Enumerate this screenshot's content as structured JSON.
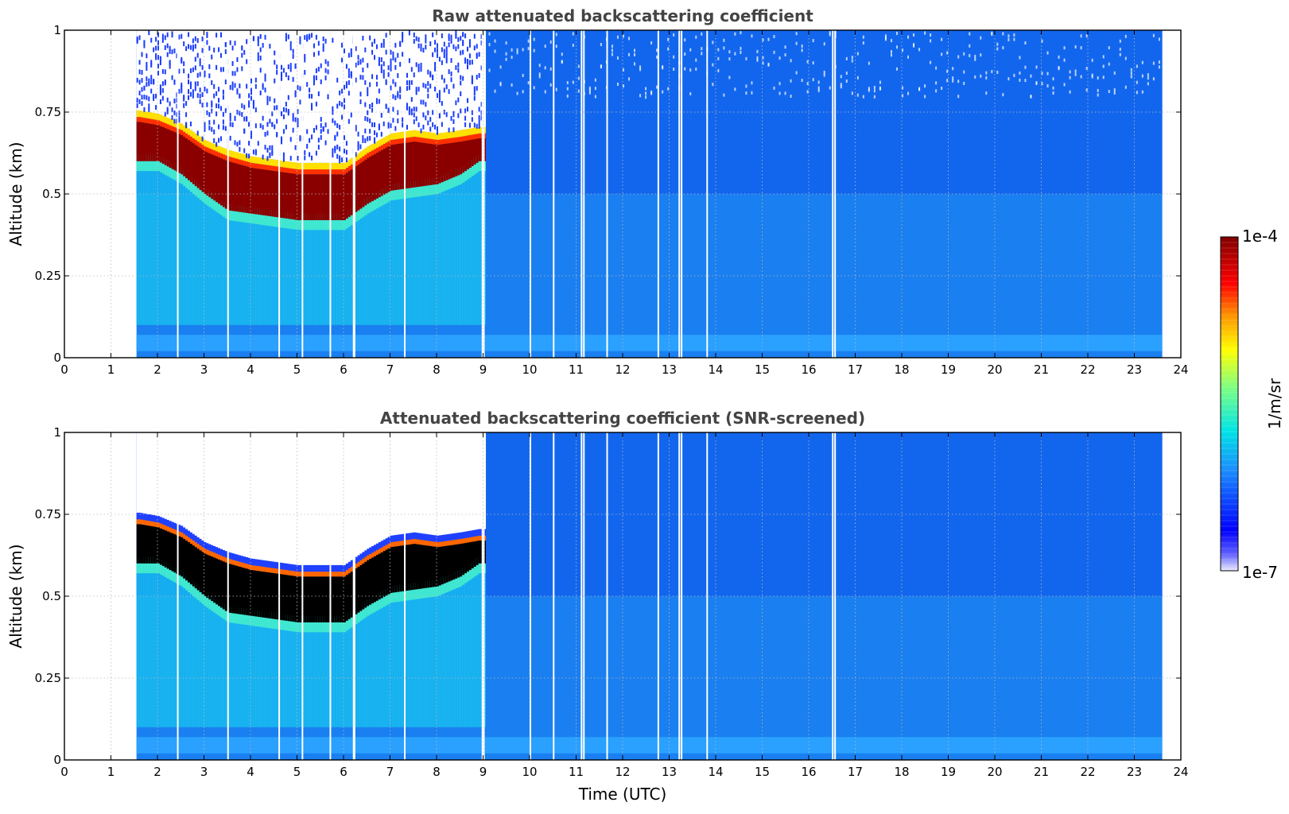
{
  "chart_data": [
    {
      "type": "heatmap",
      "title": "Raw attenuated backscattering coefficient",
      "xlabel": "",
      "ylabel": "Altitude (km)",
      "xlim": [
        0,
        24
      ],
      "ylim": [
        0,
        1
      ],
      "xticks": [
        0,
        1,
        2,
        3,
        4,
        5,
        6,
        7,
        8,
        9,
        10,
        11,
        12,
        13,
        14,
        15,
        16,
        17,
        18,
        19,
        20,
        21,
        22,
        23,
        24
      ],
      "yticks": [
        "0",
        "0.25",
        "0.5",
        "0.75",
        "1"
      ],
      "yticks_values": [
        0,
        0.25,
        0.5,
        0.75,
        1
      ],
      "grid": true,
      "data_time_range": [
        1.55,
        23.6
      ],
      "cloud_layer": {
        "times": [
          1.6,
          2.0,
          2.5,
          3.0,
          3.5,
          4.0,
          4.5,
          5.0,
          5.5,
          6.0,
          6.5,
          7.0,
          7.5,
          8.0,
          8.5,
          8.9
        ],
        "base_km": [
          0.6,
          0.6,
          0.56,
          0.5,
          0.45,
          0.44,
          0.43,
          0.42,
          0.42,
          0.42,
          0.47,
          0.51,
          0.52,
          0.53,
          0.56,
          0.6
        ],
        "top_km": [
          0.72,
          0.71,
          0.68,
          0.63,
          0.6,
          0.58,
          0.57,
          0.56,
          0.56,
          0.56,
          0.61,
          0.65,
          0.66,
          0.65,
          0.66,
          0.67
        ]
      },
      "data_gaps_utc": [
        2.42,
        3.5,
        4.6,
        5.1,
        5.7,
        6.2,
        6.22,
        7.3,
        8.97,
        9.0,
        10.0,
        10.5,
        11.1,
        11.15,
        11.65,
        12.75,
        13.2,
        13.25,
        13.8,
        16.5,
        16.55
      ]
    },
    {
      "type": "heatmap",
      "title": "Attenuated backscattering coefficient (SNR-screened)",
      "xlabel": "Time (UTC)",
      "ylabel": "Altitude (km)",
      "xlim": [
        0,
        24
      ],
      "ylim": [
        0,
        1
      ],
      "xticks": [
        0,
        1,
        2,
        3,
        4,
        5,
        6,
        7,
        8,
        9,
        10,
        11,
        12,
        13,
        14,
        15,
        16,
        17,
        18,
        19,
        20,
        21,
        22,
        23,
        24
      ],
      "yticks": [
        "0",
        "0.25",
        "0.5",
        "0.75",
        "1"
      ],
      "yticks_values": [
        0,
        0.25,
        0.5,
        0.75,
        1
      ],
      "grid": true,
      "data_time_range": [
        1.55,
        23.6
      ],
      "saturated_color": "#000000"
    }
  ],
  "colorbar": {
    "label": "1/m/sr",
    "max_label": "1e-4",
    "min_label": "1e-7",
    "scale": "log",
    "range": [
      1e-07,
      0.0001
    ],
    "colormap": [
      "#e8e8f8",
      "#0000ff",
      "#1e90ff",
      "#00e0e0",
      "#80ff80",
      "#ffff00",
      "#ff8000",
      "#ff0000",
      "#800000"
    ]
  }
}
